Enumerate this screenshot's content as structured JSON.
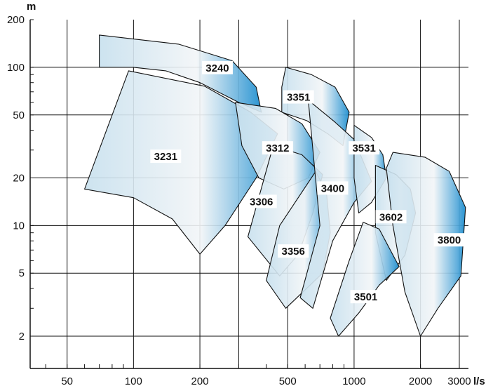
{
  "chart_data": {
    "type": "area",
    "title": "",
    "x_unit": "l/s",
    "y_unit": "m",
    "x_scale": "log",
    "y_scale": "log",
    "xlim": [
      34,
      3300
    ],
    "ylim": [
      1.25,
      200
    ],
    "grid": true,
    "x_ticks": [
      {
        "value": 50,
        "label": "50"
      },
      {
        "value": 100,
        "label": "100"
      },
      {
        "value": 200,
        "label": "200"
      },
      {
        "value": 500,
        "label": "500"
      },
      {
        "value": 1000,
        "label": "1000"
      },
      {
        "value": 2000,
        "label": "2000"
      },
      {
        "value": 3000,
        "label": "3000"
      }
    ],
    "x_grid": [
      50,
      100,
      200,
      300,
      500,
      1000,
      2000,
      3000
    ],
    "y_ticks": [
      {
        "value": 2,
        "label": "2"
      },
      {
        "value": 5,
        "label": "5"
      },
      {
        "value": 10,
        "label": "10"
      },
      {
        "value": 20,
        "label": "20"
      },
      {
        "value": 50,
        "label": "50"
      },
      {
        "value": 100,
        "label": "100"
      },
      {
        "value": 200,
        "label": "200"
      }
    ],
    "y_grid": [
      2,
      5,
      10,
      20,
      50,
      100
    ],
    "series": [
      {
        "name": "3240",
        "label_at": [
          240,
          98
        ],
        "points": [
          [
            70,
            160
          ],
          [
            160,
            140
          ],
          [
            280,
            110
          ],
          [
            360,
            75
          ],
          [
            380,
            52
          ],
          [
            300,
            60
          ],
          [
            200,
            80
          ],
          [
            140,
            95
          ],
          [
            100,
            100
          ],
          [
            70,
            100
          ]
        ]
      },
      {
        "name": "3351",
        "label_at": [
          560,
          64
        ],
        "points": [
          [
            490,
            100
          ],
          [
            640,
            90
          ],
          [
            820,
            75
          ],
          [
            950,
            52
          ],
          [
            890,
            32
          ],
          [
            760,
            38
          ],
          [
            610,
            46
          ],
          [
            470,
            52
          ],
          [
            470,
            75
          ]
        ]
      },
      {
        "name": "3231",
        "label_at": [
          140,
          27
        ],
        "points": [
          [
            60,
            17
          ],
          [
            95,
            95
          ],
          [
            210,
            76
          ],
          [
            340,
            52
          ],
          [
            450,
            38
          ],
          [
            360,
            20
          ],
          [
            260,
            10
          ],
          [
            200,
            6.6
          ],
          [
            150,
            11
          ],
          [
            100,
            15
          ],
          [
            60,
            17
          ]
        ]
      },
      {
        "name": "3312",
        "label_at": [
          450,
          30.5
        ],
        "points": [
          [
            290,
            60
          ],
          [
            440,
            55
          ],
          [
            580,
            44
          ],
          [
            700,
            29
          ],
          [
            620,
            20
          ],
          [
            480,
            17
          ],
          [
            370,
            20
          ],
          [
            310,
            32
          ]
        ]
      },
      {
        "name": "3306",
        "label_at": [
          380,
          14
        ],
        "points": [
          [
            430,
            32
          ],
          [
            580,
            28
          ],
          [
            720,
            21
          ],
          [
            650,
            12
          ],
          [
            560,
            6.6
          ],
          [
            460,
            4.8
          ],
          [
            330,
            8.5
          ]
        ]
      },
      {
        "name": "3356",
        "label_at": [
          530,
          6.8
        ],
        "points": [
          [
            670,
            22
          ],
          [
            750,
            16
          ],
          [
            780,
            9
          ],
          [
            720,
            5
          ],
          [
            490,
            3
          ],
          [
            400,
            4.5
          ],
          [
            460,
            10
          ]
        ]
      },
      {
        "name": "3400",
        "label_at": [
          800,
          17
        ],
        "points": [
          [
            620,
            62
          ],
          [
            820,
            45
          ],
          [
            1000,
            35
          ],
          [
            1200,
            19
          ],
          [
            1000,
            14
          ],
          [
            800,
            8
          ],
          [
            650,
            3
          ],
          [
            570,
            3.5
          ],
          [
            700,
            10
          ]
        ]
      },
      {
        "name": "3531",
        "label_at": [
          1110,
          30.5
        ],
        "points": [
          [
            1000,
            43
          ],
          [
            1200,
            36
          ],
          [
            1350,
            28
          ],
          [
            1400,
            20
          ],
          [
            1200,
            14
          ],
          [
            1050,
            12
          ],
          [
            1000,
            20
          ]
        ]
      },
      {
        "name": "3602",
        "label_at": [
          1470,
          11.2
        ],
        "points": [
          [
            1250,
            24
          ],
          [
            1550,
            21
          ],
          [
            1800,
            17
          ],
          [
            1900,
            12
          ],
          [
            1700,
            6.5
          ],
          [
            1400,
            4.5
          ],
          [
            1250,
            9
          ]
        ]
      },
      {
        "name": "3800",
        "label_at": [
          2700,
          8
        ],
        "points": [
          [
            1500,
            29
          ],
          [
            2100,
            27
          ],
          [
            2700,
            22
          ],
          [
            3200,
            13
          ],
          [
            3050,
            4.8
          ],
          [
            2400,
            3
          ],
          [
            2000,
            2
          ],
          [
            1700,
            3.8
          ],
          [
            1500,
            10
          ],
          [
            1400,
            23
          ]
        ]
      },
      {
        "name": "3501",
        "label_at": [
          1130,
          3.5
        ],
        "points": [
          [
            1100,
            10.5
          ],
          [
            1300,
            9.5
          ],
          [
            1600,
            5.5
          ],
          [
            1300,
            4.2
          ],
          [
            1050,
            2.8
          ],
          [
            850,
            2
          ],
          [
            780,
            2.6
          ],
          [
            950,
            6
          ]
        ]
      }
    ],
    "fill_light": "#eef3f6",
    "fill_mid": "#c7e0ee",
    "fill_dark": "#1f8fd0",
    "edge_color": "#111111",
    "grid_color": "#111111"
  }
}
